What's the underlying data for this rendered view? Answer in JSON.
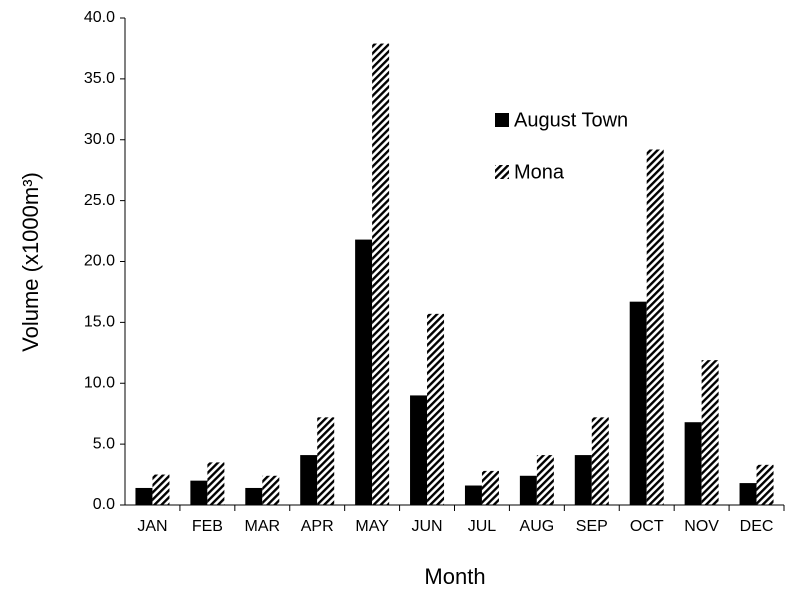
{
  "chart_data": {
    "type": "bar",
    "x_label": "Month",
    "y_label": "Volume (x1000m³)",
    "categories": [
      "JAN",
      "FEB",
      "MAR",
      "APR",
      "MAY",
      "JUN",
      "JUL",
      "AUG",
      "SEP",
      "OCT",
      "NOV",
      "DEC"
    ],
    "series": [
      {
        "name": "August Town",
        "color": "#000000",
        "pattern": "solid",
        "values": [
          1.4,
          2.0,
          1.4,
          4.1,
          21.8,
          9.0,
          1.6,
          2.4,
          4.1,
          16.7,
          6.8,
          1.8
        ]
      },
      {
        "name": "Mona",
        "color": "#000000",
        "pattern": "hatch",
        "values": [
          2.5,
          3.5,
          2.4,
          7.2,
          37.9,
          15.7,
          2.8,
          4.1,
          7.2,
          29.2,
          11.9,
          3.3
        ]
      }
    ],
    "ylim": [
      0,
      40
    ],
    "yticks": [
      {
        "value": 0,
        "label": "0.0"
      },
      {
        "value": 5,
        "label": "5.0"
      },
      {
        "value": 10,
        "label": "10.0"
      },
      {
        "value": 15,
        "label": "15.0"
      },
      {
        "value": 20,
        "label": "20.0"
      },
      {
        "value": 25,
        "label": "25.0"
      },
      {
        "value": 30,
        "label": "30.0"
      },
      {
        "value": 35,
        "label": "35.0"
      },
      {
        "value": 40,
        "label": "40.0"
      }
    ],
    "grid": false,
    "legend": "upper right"
  }
}
